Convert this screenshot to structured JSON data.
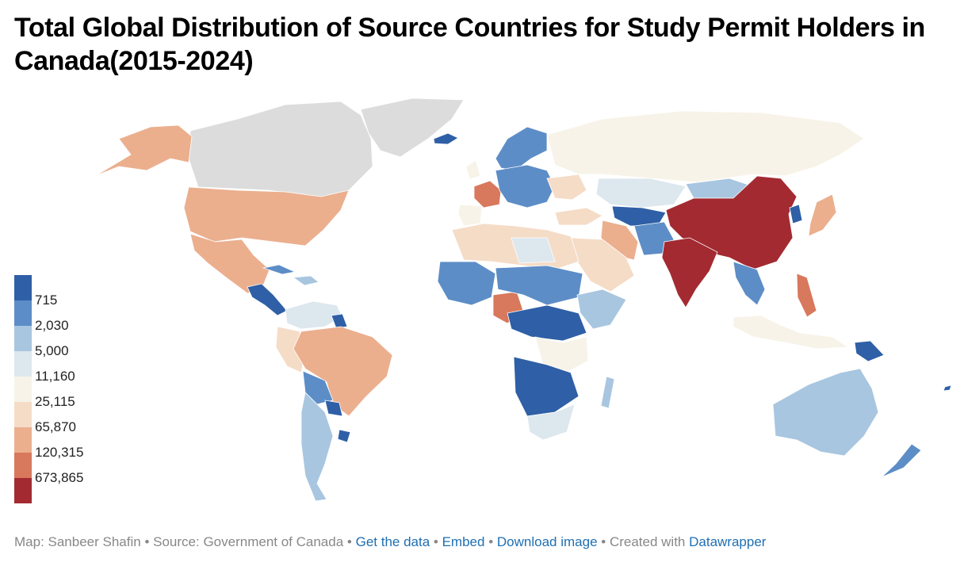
{
  "title": "Total Global Distribution of Source Countries for Study Permit Holders in Canada(2015-2024)",
  "legend": {
    "labels": [
      "715",
      "2,030",
      "5,000",
      "11,160",
      "25,115",
      "65,870",
      "120,315",
      "673,865"
    ],
    "colors": [
      "#2f5fa6",
      "#5d8dc6",
      "#a8c6e0",
      "#dde7ee",
      "#f7f3e8",
      "#f5dcc7",
      "#ebaf8e",
      "#d8785c",
      "#a32a31"
    ],
    "no_data_color": "#dcdcdc"
  },
  "footer": {
    "map_credit": "Map: Sanbeer Shafin",
    "source": "Source: Government of Canada",
    "get_data": "Get the data",
    "embed": "Embed",
    "download": "Download image",
    "created_with": "Created with",
    "tool": "Datawrapper"
  }
}
